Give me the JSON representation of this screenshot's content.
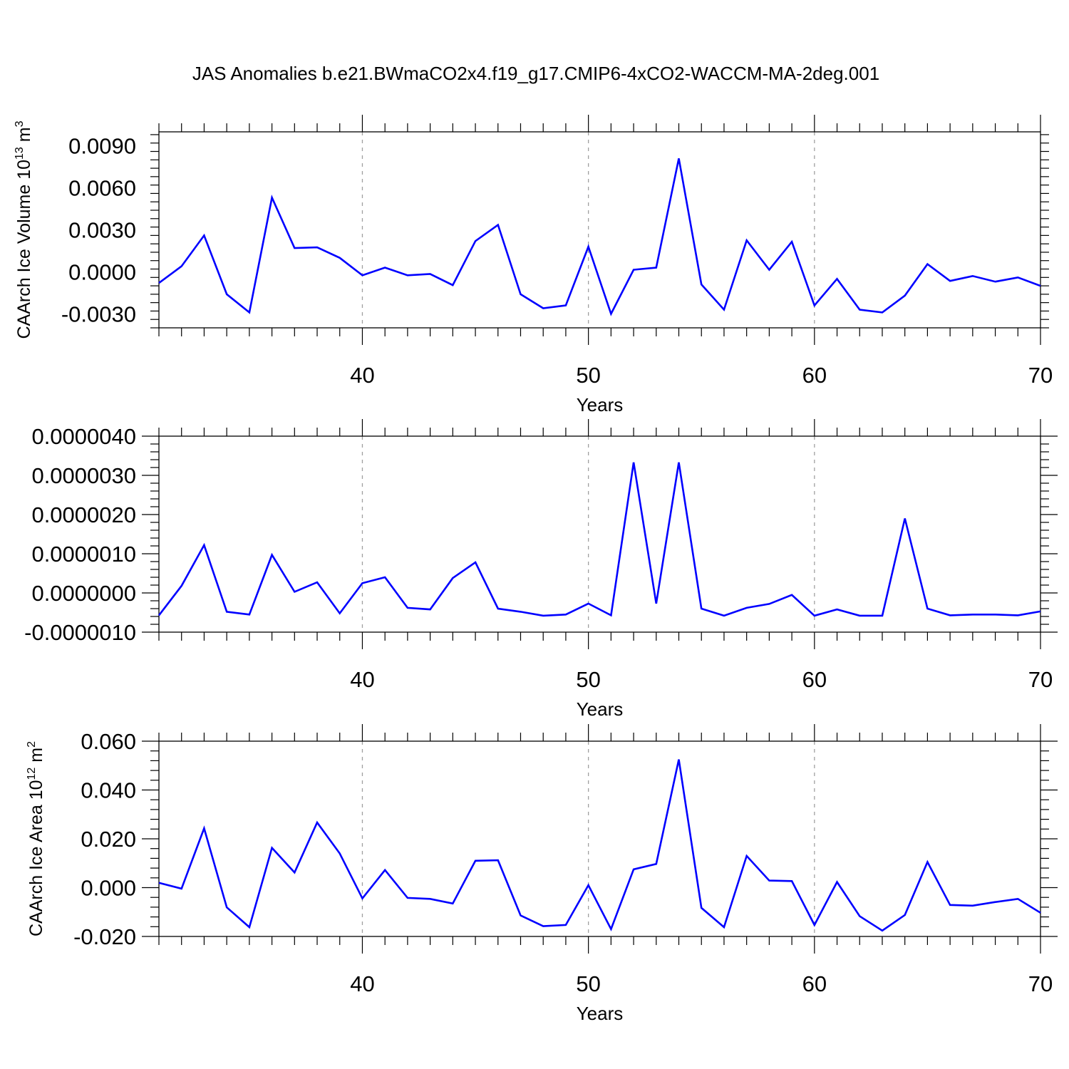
{
  "title": "JAS Anomalies b.e21.BWmaCO2x4.f19_g17.CMIP6-4xCO2-WACCM-MA-2deg.001",
  "colors": {
    "line": "#0000ff",
    "axis": "#000000",
    "grid": "#a0a0a0"
  },
  "chart_data": [
    {
      "type": "line",
      "title": "",
      "xlabel": "Years",
      "ylabel": "CAArch Ice Volume 10^13 m^3",
      "ylabel_parts": {
        "base": "CAArch Ice Volume 10",
        "exp1": "13",
        "mid": " m",
        "exp2": "3"
      },
      "xlim": [
        31,
        70
      ],
      "ylim": [
        -0.004,
        0.01
      ],
      "x_ticks": [
        40,
        50,
        60,
        70
      ],
      "x_tick_labels": [
        "40",
        "50",
        "60",
        "70"
      ],
      "y_ticks": [
        -0.003,
        0.0,
        0.003,
        0.006,
        0.009
      ],
      "y_tick_labels": [
        "-0.0030",
        "0.0000",
        "0.0030",
        "0.0060",
        "0.0090"
      ],
      "grid": "vertical dashed at major x ticks",
      "x": [
        31,
        32,
        33,
        34,
        35,
        36,
        37,
        38,
        39,
        40,
        41,
        42,
        43,
        44,
        45,
        46,
        47,
        48,
        49,
        50,
        51,
        52,
        53,
        54,
        55,
        56,
        57,
        58,
        59,
        60,
        61,
        62,
        63,
        64,
        65,
        66,
        67,
        68,
        69,
        70
      ],
      "series": [
        {
          "values": [
            -0.0008,
            0.0004,
            0.0026,
            -0.0016,
            -0.0029,
            0.0053,
            0.0017,
            0.00175,
            0.001,
            -0.00025,
            0.0003,
            -0.00025,
            -0.00015,
            -0.00095,
            0.0022,
            0.00335,
            -0.0016,
            -0.0026,
            -0.0024,
            0.0018,
            -0.003,
            0.00015,
            0.0003,
            0.0081,
            -0.0009,
            -0.0027,
            0.00225,
            0.00015,
            0.00215,
            -0.0024,
            -0.0005,
            -0.0027,
            -0.0029,
            -0.0017,
            0.00055,
            -0.00065,
            -0.0003,
            -0.0007,
            -0.0004,
            -0.001
          ]
        }
      ]
    },
    {
      "type": "line",
      "title": "",
      "xlabel": "Years",
      "ylabel": "",
      "xlim": [
        31,
        70
      ],
      "ylim": [
        -1e-06,
        4e-06
      ],
      "x_ticks": [
        40,
        50,
        60,
        70
      ],
      "x_tick_labels": [
        "40",
        "50",
        "60",
        "70"
      ],
      "y_ticks": [
        -1e-06,
        0.0,
        1e-06,
        2e-06,
        3e-06,
        4e-06
      ],
      "y_tick_labels": [
        "-0.0000010",
        "0.0000000",
        "0.0000010",
        "0.0000020",
        "0.0000030",
        "0.0000040"
      ],
      "grid": "vertical dashed at major x ticks",
      "x": [
        31,
        32,
        33,
        34,
        35,
        36,
        37,
        38,
        39,
        40,
        41,
        42,
        43,
        44,
        45,
        46,
        47,
        48,
        49,
        50,
        51,
        52,
        53,
        54,
        55,
        56,
        57,
        58,
        59,
        60,
        61,
        62,
        63,
        64,
        65,
        66,
        67,
        68,
        69,
        70
      ],
      "series": [
        {
          "values": [
            -5.7e-07,
            1.8e-07,
            1.22e-06,
            -4.8e-07,
            -5.5e-07,
            9.7e-07,
            3e-08,
            2.7e-07,
            -5.2e-07,
            2.5e-07,
            4e-07,
            -3.8e-07,
            -4.2e-07,
            3.8e-07,
            7.8e-07,
            -4e-07,
            -4.8e-07,
            -5.8e-07,
            -5.5e-07,
            -2.7e-07,
            -5.7e-07,
            3.33e-06,
            -2.7e-07,
            3.33e-06,
            -4e-07,
            -5.8e-07,
            -3.8e-07,
            -2.8e-07,
            -5e-08,
            -5.8e-07,
            -4.2e-07,
            -5.8e-07,
            -5.8e-07,
            1.9e-06,
            -4e-07,
            -5.7e-07,
            -5.5e-07,
            -5.5e-07,
            -5.7e-07,
            -4.7e-07
          ]
        }
      ]
    },
    {
      "type": "line",
      "title": "",
      "xlabel": "Years",
      "ylabel": "CAArch Ice Area 10^12 m^2",
      "ylabel_parts": {
        "base": "CAArch Ice Area 10",
        "exp1": "12",
        "mid": " m",
        "exp2": "2"
      },
      "xlim": [
        31,
        70
      ],
      "ylim": [
        -0.02,
        0.06
      ],
      "x_ticks": [
        40,
        50,
        60,
        70
      ],
      "x_tick_labels": [
        "40",
        "50",
        "60",
        "70"
      ],
      "y_ticks": [
        -0.02,
        0.0,
        0.02,
        0.04,
        0.06
      ],
      "y_tick_labels": [
        "-0.020",
        "0.000",
        "0.020",
        "0.040",
        "0.060"
      ],
      "grid": "vertical dashed at major x ticks",
      "x": [
        31,
        32,
        33,
        34,
        35,
        36,
        37,
        38,
        39,
        40,
        41,
        42,
        43,
        44,
        45,
        46,
        47,
        48,
        49,
        50,
        51,
        52,
        53,
        54,
        55,
        56,
        57,
        58,
        59,
        60,
        61,
        62,
        63,
        64,
        65,
        66,
        67,
        68,
        69,
        70
      ],
      "series": [
        {
          "values": [
            0.002,
            -0.0004,
            0.0243,
            -0.0081,
            -0.0162,
            0.0163,
            0.0062,
            0.0267,
            0.014,
            -0.0044,
            0.0072,
            -0.0042,
            -0.0046,
            -0.0065,
            0.011,
            0.0112,
            -0.0114,
            -0.0158,
            -0.0153,
            0.001,
            -0.017,
            0.0075,
            0.0097,
            0.0525,
            -0.0083,
            -0.0162,
            0.013,
            0.0029,
            0.0027,
            -0.0153,
            0.0023,
            -0.0117,
            -0.0176,
            -0.0112,
            0.0105,
            -0.0071,
            -0.0074,
            -0.0059,
            -0.0046,
            -0.0103
          ]
        }
      ]
    }
  ]
}
